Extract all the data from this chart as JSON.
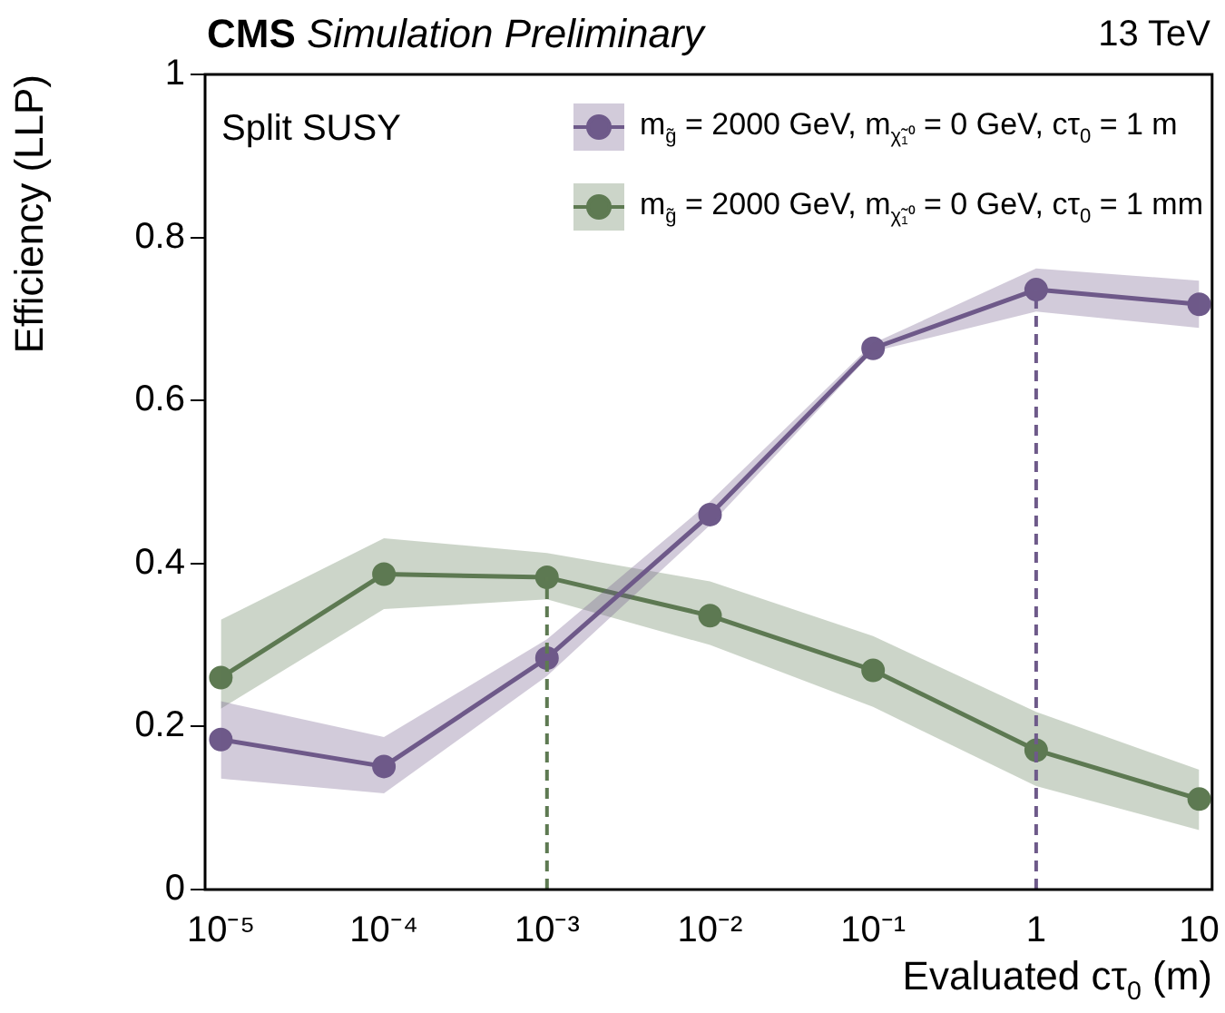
{
  "chart_data": {
    "type": "line",
    "title": "CMS Simulation Preliminary",
    "xlabel": "Evaluated cτ$_{0}$ (m)",
    "ylabel": "Efficiency (LLP)",
    "annotations": [
      "13 TeV",
      "Split SUSY"
    ],
    "x": [
      1e-05,
      0.0001,
      0.001,
      0.01,
      0.1,
      1,
      10
    ],
    "series": [
      {
        "name": "m$_{g̃}$ = 2000 GeV, m$_{χ̃₁⁰}$ = 0 GeV, cτ$_{0}$ = 1 m",
        "color": "#6e5a8a",
        "values": [
          0.184,
          0.151,
          0.284,
          0.46,
          0.664,
          0.736,
          0.718
        ],
        "lower": [
          0.136,
          0.118,
          0.262,
          0.447,
          0.66,
          0.709,
          0.689
        ],
        "upper": [
          0.231,
          0.187,
          0.307,
          0.476,
          0.67,
          0.762,
          0.747
        ]
      },
      {
        "name": "m$_{g̃}$ = 2000 GeV, m$_{χ̃₁⁰}$ = 0 GeV, cτ$_{0}$ = 1 mm",
        "color": "#5e7a52",
        "values": [
          0.26,
          0.387,
          0.383,
          0.336,
          0.269,
          0.171,
          0.111
        ],
        "lower": [
          0.222,
          0.344,
          0.356,
          0.3,
          0.224,
          0.127,
          0.073
        ],
        "upper": [
          0.331,
          0.431,
          0.413,
          0.378,
          0.311,
          0.218,
          0.147
        ]
      }
    ],
    "log": "x",
    "xlim": [
      8e-06,
      12
    ],
    "xticks": [
      {
        "value": 1e-05,
        "label": "10⁻⁵"
      },
      {
        "value": 0.0001,
        "label": "10⁻⁴"
      },
      {
        "value": 0.001,
        "label": "10⁻³"
      },
      {
        "value": 0.01,
        "label": "10⁻²"
      },
      {
        "value": 0.1,
        "label": "10⁻¹"
      },
      1,
      10
    ],
    "ylim": [
      0,
      1
    ],
    "yticks": [
      0,
      0.2,
      0.4,
      0.6,
      0.8,
      1
    ],
    "ref_lines": [
      {
        "axis": "x",
        "value": 0.001,
        "color": "#5e7a52",
        "line_style": "dashed"
      },
      {
        "axis": "x",
        "value": 1,
        "color": "#6e5a8a",
        "line_style": "dashed"
      }
    ],
    "legend": "top right",
    "marker": "circle",
    "line_style": "solid",
    "grid": false
  }
}
